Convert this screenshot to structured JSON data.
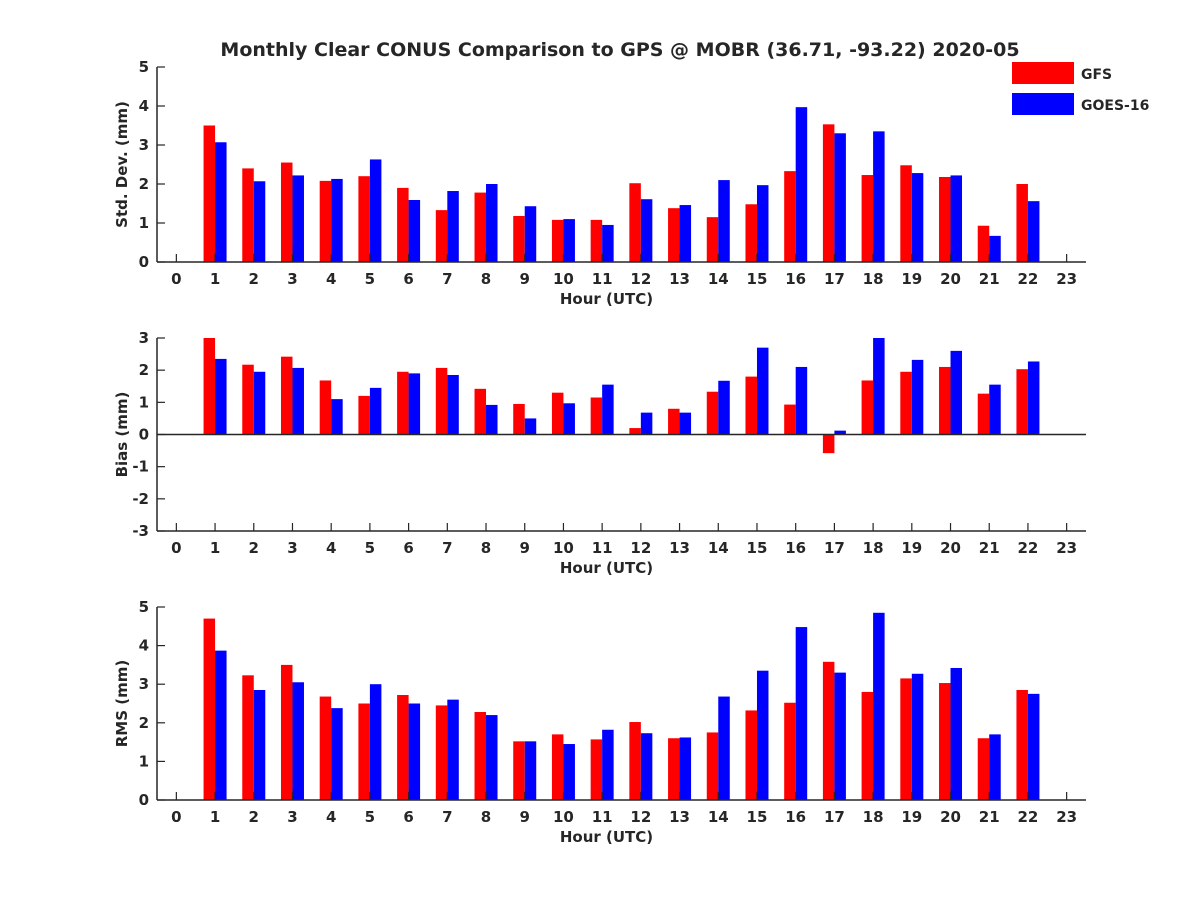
{
  "figure_title": "Monthly Clear CONUS Comparison to GPS @ MOBR (36.71, -93.22) 2020-05",
  "legend": {
    "location": "top-right",
    "entries": [
      {
        "label": "GFS",
        "color": "#ff0000"
      },
      {
        "label": "GOES-16",
        "color": "#0000ff"
      }
    ]
  },
  "chart_data": [
    {
      "type": "bar",
      "xlabel": "Hour (UTC)",
      "ylabel": "Std. Dev. (mm)",
      "ylim": [
        0,
        5
      ],
      "yticks": [
        0,
        1,
        2,
        3,
        4,
        5
      ],
      "xlim": [
        -0.5,
        23.5
      ],
      "xticks": [
        0,
        1,
        2,
        3,
        4,
        5,
        6,
        7,
        8,
        9,
        10,
        11,
        12,
        13,
        14,
        15,
        16,
        17,
        18,
        19,
        20,
        21,
        22,
        23
      ],
      "grid": false,
      "series": [
        {
          "name": "GFS",
          "color": "#ff0000",
          "x": [
            1,
            2,
            3,
            4,
            5,
            6,
            7,
            8,
            9,
            10,
            11,
            12,
            13,
            14,
            15,
            16,
            17,
            18,
            19,
            20,
            21,
            22
          ],
          "values": [
            3.5,
            2.4,
            2.55,
            2.08,
            2.2,
            1.9,
            1.33,
            1.78,
            1.18,
            1.08,
            1.08,
            2.02,
            1.38,
            1.15,
            1.48,
            2.33,
            3.53,
            2.23,
            2.48,
            2.18,
            0.93,
            2.0
          ]
        },
        {
          "name": "GOES-16",
          "color": "#0000ff",
          "x": [
            1,
            2,
            3,
            4,
            5,
            6,
            7,
            8,
            9,
            10,
            11,
            12,
            13,
            14,
            15,
            16,
            17,
            18,
            19,
            20,
            21,
            22
          ],
          "values": [
            3.07,
            2.07,
            2.22,
            2.13,
            2.63,
            1.59,
            1.82,
            2.0,
            1.43,
            1.1,
            0.95,
            1.61,
            1.46,
            2.1,
            1.97,
            3.97,
            3.3,
            3.35,
            2.28,
            2.22,
            0.67,
            1.56
          ]
        }
      ]
    },
    {
      "type": "bar",
      "xlabel": "Hour (UTC)",
      "ylabel": "Bias (mm)",
      "ylim": [
        -3,
        3
      ],
      "yticks": [
        -3,
        -2,
        -1,
        0,
        1,
        2,
        3
      ],
      "xlim": [
        -0.5,
        23.5
      ],
      "xticks": [
        0,
        1,
        2,
        3,
        4,
        5,
        6,
        7,
        8,
        9,
        10,
        11,
        12,
        13,
        14,
        15,
        16,
        17,
        18,
        19,
        20,
        21,
        22,
        23
      ],
      "grid": false,
      "zero_line": true,
      "series": [
        {
          "name": "GFS",
          "color": "#ff0000",
          "x": [
            1,
            2,
            3,
            4,
            5,
            6,
            7,
            8,
            9,
            10,
            11,
            12,
            13,
            14,
            15,
            16,
            17,
            18,
            19,
            20,
            21,
            22
          ],
          "values": [
            3.0,
            2.17,
            2.42,
            1.68,
            1.2,
            1.95,
            2.07,
            1.42,
            0.95,
            1.3,
            1.15,
            0.2,
            0.8,
            1.33,
            1.8,
            0.93,
            -0.58,
            1.68,
            1.95,
            2.1,
            1.27,
            2.03
          ]
        },
        {
          "name": "GOES-16",
          "color": "#0000ff",
          "x": [
            1,
            2,
            3,
            4,
            5,
            6,
            7,
            8,
            9,
            10,
            11,
            12,
            13,
            14,
            15,
            16,
            17,
            18,
            19,
            20,
            21,
            22
          ],
          "values": [
            2.35,
            1.95,
            2.07,
            1.1,
            1.45,
            1.9,
            1.85,
            0.92,
            0.5,
            0.97,
            1.55,
            0.68,
            0.68,
            1.67,
            2.7,
            2.1,
            0.12,
            3.0,
            2.32,
            2.6,
            1.55,
            2.27
          ]
        }
      ]
    },
    {
      "type": "bar",
      "xlabel": "Hour (UTC)",
      "ylabel": "RMS (mm)",
      "ylim": [
        0,
        5
      ],
      "yticks": [
        0,
        1,
        2,
        3,
        4,
        5
      ],
      "xlim": [
        -0.5,
        23.5
      ],
      "xticks": [
        0,
        1,
        2,
        3,
        4,
        5,
        6,
        7,
        8,
        9,
        10,
        11,
        12,
        13,
        14,
        15,
        16,
        17,
        18,
        19,
        20,
        21,
        22,
        23
      ],
      "grid": false,
      "series": [
        {
          "name": "GFS",
          "color": "#ff0000",
          "x": [
            1,
            2,
            3,
            4,
            5,
            6,
            7,
            8,
            9,
            10,
            11,
            12,
            13,
            14,
            15,
            16,
            17,
            18,
            19,
            20,
            21,
            22
          ],
          "values": [
            4.7,
            3.23,
            3.5,
            2.68,
            2.5,
            2.72,
            2.45,
            2.28,
            1.52,
            1.7,
            1.57,
            2.02,
            1.6,
            1.75,
            2.32,
            2.52,
            3.58,
            2.8,
            3.15,
            3.03,
            1.6,
            2.85
          ]
        },
        {
          "name": "GOES-16",
          "color": "#0000ff",
          "x": [
            1,
            2,
            3,
            4,
            5,
            6,
            7,
            8,
            9,
            10,
            11,
            12,
            13,
            14,
            15,
            16,
            17,
            18,
            19,
            20,
            21,
            22
          ],
          "values": [
            3.87,
            2.85,
            3.05,
            2.38,
            3.0,
            2.5,
            2.6,
            2.2,
            1.52,
            1.45,
            1.82,
            1.73,
            1.62,
            2.68,
            3.35,
            4.48,
            3.3,
            4.85,
            3.27,
            3.42,
            1.7,
            2.75
          ]
        }
      ]
    }
  ]
}
